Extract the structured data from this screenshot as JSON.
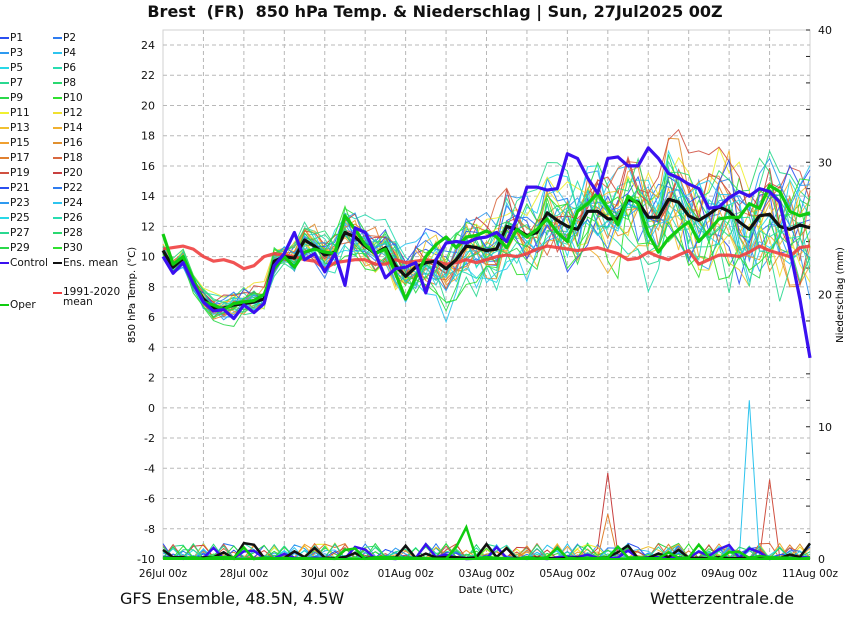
{
  "chart_data": {
    "type": "line",
    "title": "Brest  (FR)  850 hPa Temp. & Niederschlag | Sun, 27Jul2025 00Z",
    "xlabel": "Date (UTC)",
    "ylabel": "850 hPa Temp. (°C)",
    "ylabel_right": "Niederschlag (mm)",
    "ylim": [
      -10,
      25
    ],
    "ylim_right": [
      0,
      40
    ],
    "yticks": [
      "24",
      "22",
      "20",
      "18",
      "16",
      "14",
      "12",
      "10",
      "8",
      "6",
      "4",
      "2",
      "0",
      "-2",
      "-4",
      "-6",
      "-8",
      "-10"
    ],
    "yticks_right": [
      "40",
      "30",
      "20",
      "10",
      "0"
    ],
    "xticks": [
      "26Jul 00z",
      "28Jul 00z",
      "30Jul 00z",
      "01Aug 00z",
      "03Aug 00z",
      "05Aug 00z",
      "07Aug 00z",
      "09Aug 00z",
      "11Aug 00z"
    ],
    "x_step_hours": 6,
    "grid": true,
    "legend_position": "left",
    "colors": {
      "P1": "#2a4ef0",
      "P2": "#2f7cf0",
      "P3": "#2e9af0",
      "P4": "#2ec4ee",
      "P5": "#28d8e8",
      "P6": "#28dcb0",
      "P7": "#2ad890",
      "P8": "#2ad870",
      "P9": "#2ad84a",
      "P10": "#30e030",
      "P11": "#f0f030",
      "P12": "#f0e030",
      "P13": "#f0c030",
      "P14": "#f0b030",
      "P15": "#f0a030",
      "P16": "#e09030",
      "P17": "#e08030",
      "P18": "#d86840",
      "P19": "#d05040",
      "P20": "#c84040",
      "P21": "#2a4ef0",
      "P22": "#2f7cf0",
      "P23": "#2e9af0",
      "P24": "#2ec4ee",
      "P25": "#28d8e8",
      "P26": "#28dcb0",
      "P27": "#2ad890",
      "P28": "#2ad870",
      "P29": "#2ad84a",
      "P30": "#30e030",
      "Control": "#3a10f0",
      "Ens. mean": "#111111",
      "1991-2020 mean": "#f04040",
      "Oper": "#10cc10"
    },
    "series": [
      {
        "name": "Control",
        "values": [
          10,
          8.9,
          9.6,
          8.2,
          7.0,
          6.4,
          6.5,
          5.9,
          6.8,
          6.3,
          6.9,
          9.4,
          10.2,
          11.6,
          9.8,
          10.2,
          9.0,
          10.2,
          8.1,
          11.9,
          11.6,
          10.2,
          8.6,
          9.2,
          9.3,
          9.6,
          7.6,
          9.8,
          10.9,
          11.0,
          10.9,
          11.2,
          11.3,
          11.6,
          11.0,
          12.5,
          14.6,
          14.6,
          14.4,
          14.5,
          16.8,
          16.5,
          15.2,
          14.2,
          16.5,
          16.6,
          16.0,
          16.0,
          17.2,
          16.5,
          15.5,
          15.2,
          14.8,
          14.5,
          13.2,
          13.3,
          13.9,
          14.3,
          14.0,
          14.5,
          14.3,
          13.6,
          10.5,
          7.2,
          3.3
        ]
      },
      {
        "name": "Ens. mean",
        "values": [
          10.4,
          9.3,
          9.9,
          8.3,
          7.2,
          6.6,
          6.6,
          6.8,
          6.9,
          7.0,
          7.2,
          9.7,
          10.0,
          9.9,
          11.1,
          10.7,
          10.1,
          10.3,
          11.6,
          11.3,
          10.7,
          10.2,
          10.6,
          9.4,
          8.7,
          9.3,
          9.6,
          9.7,
          9.2,
          9.8,
          10.7,
          10.6,
          10.4,
          10.5,
          12.0,
          11.8,
          11.4,
          11.6,
          12.9,
          12.4,
          12.0,
          11.8,
          13.0,
          13.0,
          12.5,
          12.5,
          13.8,
          13.6,
          12.6,
          12.6,
          13.8,
          13.6,
          12.7,
          12.4,
          12.8,
          13.3,
          13.0,
          12.3,
          11.8,
          12.7,
          12.8,
          12.0,
          11.8,
          12.1,
          11.9
        ]
      },
      {
        "name": "1991-2020 mean",
        "values": [
          10.5,
          10.6,
          10.7,
          10.5,
          10.0,
          9.7,
          9.8,
          9.6,
          9.2,
          9.4,
          10.0,
          10.2,
          10.1,
          10.0,
          9.8,
          9.7,
          9.2,
          9.6,
          9.7,
          9.8,
          9.8,
          9.5,
          9.5,
          9.8,
          9.6,
          9.7,
          9.8,
          9.7,
          9.5,
          9.6,
          9.8,
          9.6,
          9.8,
          10.0,
          10.1,
          10.0,
          10.2,
          10.5,
          10.7,
          10.6,
          10.5,
          10.4,
          10.5,
          10.6,
          10.4,
          10.2,
          9.8,
          9.9,
          10.3,
          10.0,
          9.8,
          10.1,
          10.4,
          9.5,
          9.8,
          10.1,
          10.1,
          10.0,
          10.3,
          10.7,
          10.4,
          10.2,
          10.0,
          10.6,
          10.7
        ]
      },
      {
        "name": "Oper",
        "values": [
          11.5,
          9.5,
          10.0,
          8.5,
          7.0,
          6.8,
          6.5,
          6.9,
          7.0,
          7.1,
          7.5,
          9.2,
          10.0,
          9.3,
          10.3,
          10.5,
          10.3,
          10.2,
          12.7,
          11.8,
          10.8,
          10.2,
          10.5,
          8.9,
          7.2,
          8.6,
          10.0,
          10.8,
          11.3,
          10.6,
          11.3,
          11.4,
          11.7,
          11.3,
          10.6,
          11.8,
          11.3,
          11.8,
          12.5,
          11.6,
          11.0,
          13.0,
          13.5,
          14.2,
          13.2,
          12.1,
          14.0,
          13.5,
          11.5,
          10.3,
          11.2,
          11.8,
          12.3,
          11.0,
          11.7,
          12.5,
          12.6,
          12.6,
          13.5,
          13.2,
          14.7,
          14.3,
          13.0,
          12.7,
          12.9
        ]
      }
    ],
    "ensemble_members": [
      "P1",
      "P2",
      "P3",
      "P4",
      "P5",
      "P6",
      "P7",
      "P8",
      "P9",
      "P10",
      "P11",
      "P12",
      "P13",
      "P14",
      "P15",
      "P16",
      "P17",
      "P18",
      "P19",
      "P20",
      "P21",
      "P22",
      "P23",
      "P24",
      "P25",
      "P26",
      "P27",
      "P28",
      "P29",
      "P30"
    ],
    "precipitation": {
      "unit": "mm",
      "peaks": [
        {
          "series": "P20",
          "day": 11.0,
          "value": 6.5
        },
        {
          "series": "P24",
          "day": 14.5,
          "value": 12.0
        },
        {
          "series": "Oper",
          "day": 7.5,
          "value": 2.4
        },
        {
          "series": "P19",
          "day": 15.0,
          "value": 6.0
        },
        {
          "series": "P17",
          "day": 11.1,
          "value": 3.4
        }
      ]
    }
  },
  "legend": {
    "items": [
      "P1",
      "P2",
      "P3",
      "P4",
      "P5",
      "P6",
      "P7",
      "P8",
      "P9",
      "P10",
      "P11",
      "P12",
      "P13",
      "P14",
      "P15",
      "P16",
      "P17",
      "P18",
      "P19",
      "P20",
      "P21",
      "P22",
      "P23",
      "P24",
      "P25",
      "P26",
      "P27",
      "P28",
      "P29",
      "P30",
      "Control",
      "Ens. mean"
    ],
    "clim_label": "1991-2020\nmean",
    "oper_label": "Oper"
  },
  "footer": {
    "source": "GFS Ensemble, 48.5N, 4.5W",
    "site": "Wetterzentrale.de"
  }
}
